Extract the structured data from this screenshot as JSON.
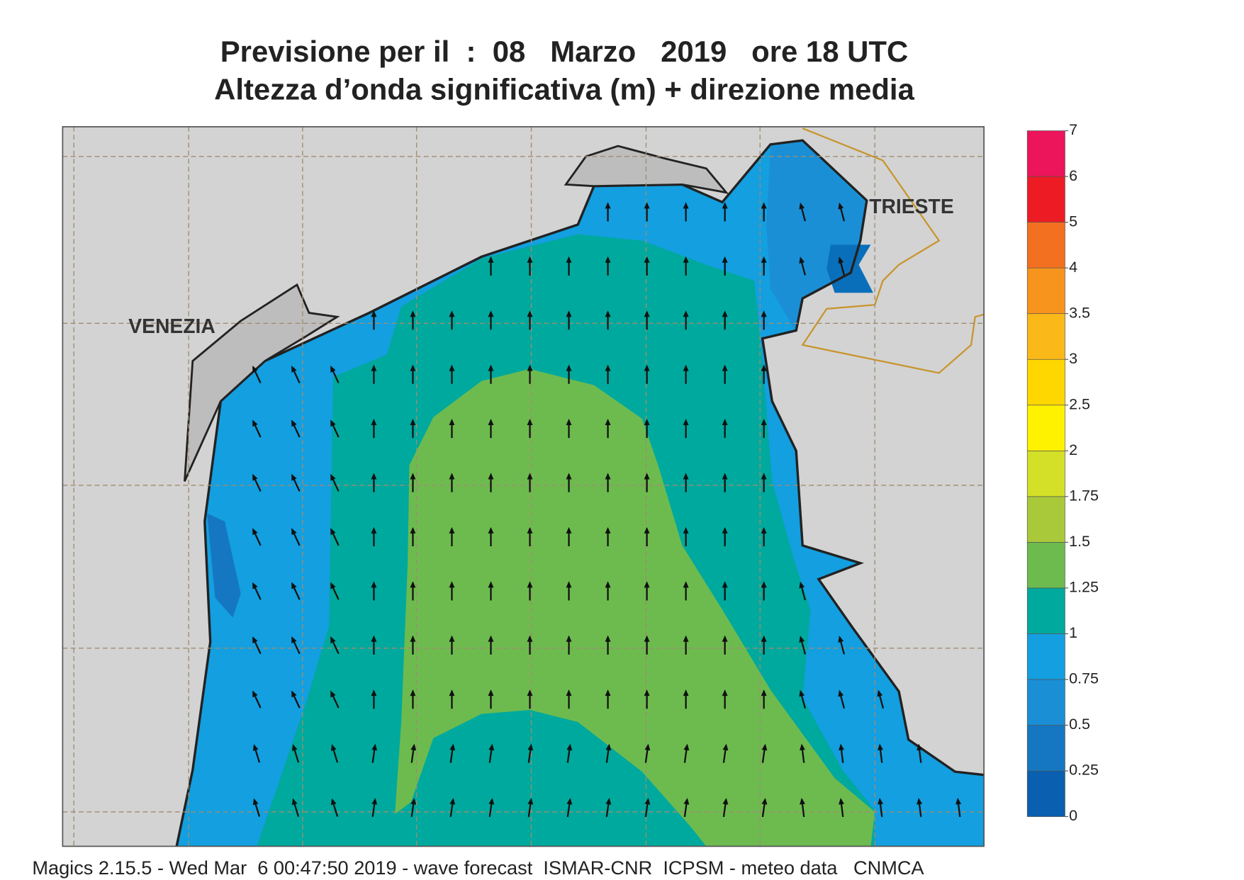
{
  "header": {
    "title": "Previsione per il  :  08   Marzo   2019   ore 18 UTC",
    "subtitle": "Altezza d’onda significativa (m) + direzione media"
  },
  "map": {
    "places": [
      "VENEZIA",
      "TRIESTE"
    ]
  },
  "legend": {
    "levels": [
      0,
      0.25,
      0.5,
      0.75,
      1,
      1.25,
      1.5,
      1.75,
      2,
      2.5,
      3,
      3.5,
      4,
      5,
      6,
      7
    ],
    "colors": [
      "#0a5fb0",
      "#1577c2",
      "#1a8fd6",
      "#139fe0",
      "#00a99d",
      "#6dbb4f",
      "#a9c93a",
      "#d4df27",
      "#fff200",
      "#ffd700",
      "#fbb819",
      "#f7941d",
      "#f37021",
      "#ed1c24",
      "#ec145a"
    ]
  },
  "footer": "Magics 2.15.5 - Wed Mar  6 00:47:50 2019 - wave forecast  ISMAR-CNR  ICPSM - meteo data   CNMCA"
}
